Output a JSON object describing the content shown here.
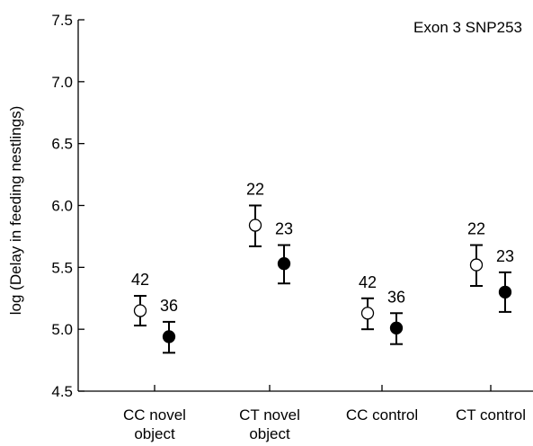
{
  "chart_data": {
    "type": "scatter",
    "annotation": "Exon 3 SNP253",
    "ylabel": "log (Delay in feeding nestlings)",
    "ylim": [
      4.5,
      7.5
    ],
    "yticks": [
      "4.5",
      "5.0",
      "5.5",
      "6.0",
      "6.5",
      "7.0",
      "7.5"
    ],
    "grid": false,
    "categories": [
      [
        "CC novel",
        "object"
      ],
      [
        "CT novel",
        "object"
      ],
      [
        "CC control"
      ],
      [
        "CT control"
      ]
    ],
    "series": [
      {
        "marker": "open-circle",
        "values": [
          5.15,
          5.84,
          5.13,
          5.52
        ],
        "err_low": [
          5.03,
          5.67,
          5.0,
          5.35
        ],
        "err_high": [
          5.27,
          6.0,
          5.25,
          5.68
        ],
        "labels": [
          "42",
          "22",
          "42",
          "22"
        ]
      },
      {
        "marker": "filled-circle",
        "values": [
          4.94,
          5.53,
          5.01,
          5.3
        ],
        "err_low": [
          4.81,
          5.37,
          4.88,
          5.14
        ],
        "err_high": [
          5.06,
          5.68,
          5.13,
          5.46
        ],
        "labels": [
          "36",
          "23",
          "36",
          "23"
        ]
      }
    ]
  }
}
